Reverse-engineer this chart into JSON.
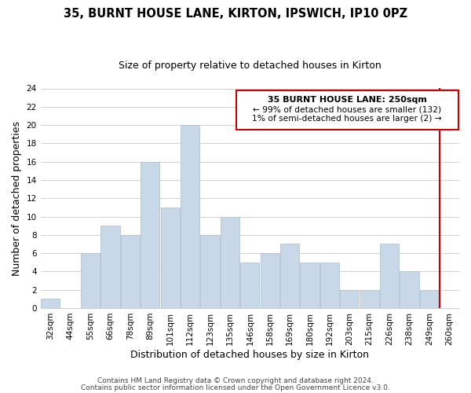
{
  "title": "35, BURNT HOUSE LANE, KIRTON, IPSWICH, IP10 0PZ",
  "subtitle": "Size of property relative to detached houses in Kirton",
  "xlabel": "Distribution of detached houses by size in Kirton",
  "ylabel": "Number of detached properties",
  "bar_labels": [
    "32sqm",
    "44sqm",
    "55sqm",
    "66sqm",
    "78sqm",
    "89sqm",
    "101sqm",
    "112sqm",
    "123sqm",
    "135sqm",
    "146sqm",
    "158sqm",
    "169sqm",
    "180sqm",
    "192sqm",
    "203sqm",
    "215sqm",
    "226sqm",
    "238sqm",
    "249sqm",
    "260sqm"
  ],
  "bar_values": [
    1,
    0,
    6,
    9,
    8,
    16,
    11,
    20,
    8,
    10,
    5,
    6,
    7,
    5,
    5,
    2,
    2,
    7,
    4,
    2,
    0
  ],
  "bar_color": "#c8d8e8",
  "bar_edge_color": "#b0c4d4",
  "ylim": [
    0,
    24
  ],
  "yticks": [
    0,
    2,
    4,
    6,
    8,
    10,
    12,
    14,
    16,
    18,
    20,
    22,
    24
  ],
  "ref_line_color": "#cc0000",
  "annotation_title": "35 BURNT HOUSE LANE: 250sqm",
  "annotation_line1": "← 99% of detached houses are smaller (132)",
  "annotation_line2": "1% of semi-detached houses are larger (2) →",
  "annotation_box_color": "#cc0000",
  "footer_line1": "Contains HM Land Registry data © Crown copyright and database right 2024.",
  "footer_line2": "Contains public sector information licensed under the Open Government Licence v3.0.",
  "title_fontsize": 10.5,
  "subtitle_fontsize": 9,
  "axis_label_fontsize": 9,
  "tick_fontsize": 7.5,
  "annotation_fontsize": 8,
  "footer_fontsize": 6.5
}
